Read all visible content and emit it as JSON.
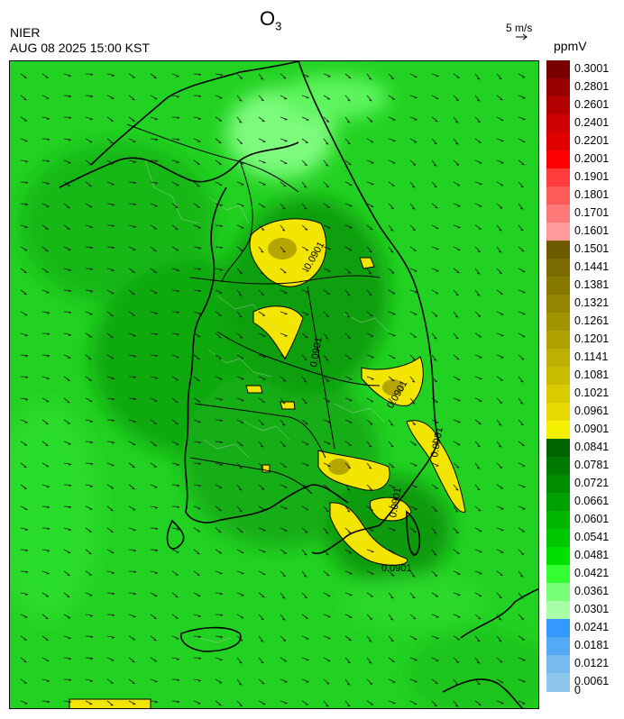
{
  "header": {
    "title": "O",
    "title_sub": "3",
    "agency": "NIER",
    "timestamp": "AUG 08 2025 15:00 KST",
    "vector_scale_label": "5 m/s",
    "units": "ppmV"
  },
  "map": {
    "contour_labels": [
      "0.0901",
      "0.0901",
      "0.0901",
      "0.0901",
      "0.0901",
      "0.0901"
    ]
  },
  "colorbar": {
    "levels": [
      {
        "label": "0.3001",
        "color": "#7a0000"
      },
      {
        "label": "0.2801",
        "color": "#990000"
      },
      {
        "label": "0.2601",
        "color": "#b30000"
      },
      {
        "label": "0.2401",
        "color": "#cc0000"
      },
      {
        "label": "0.2201",
        "color": "#e00000"
      },
      {
        "label": "0.2001",
        "color": "#ff0000"
      },
      {
        "label": "0.1901",
        "color": "#ff3b3b"
      },
      {
        "label": "0.1801",
        "color": "#ff5a5a"
      },
      {
        "label": "0.1701",
        "color": "#ff7878"
      },
      {
        "label": "0.1601",
        "color": "#ff9a9a"
      },
      {
        "label": "0.1501",
        "color": "#6e5a00"
      },
      {
        "label": "0.1441",
        "color": "#7a6a00"
      },
      {
        "label": "0.1381",
        "color": "#877800"
      },
      {
        "label": "0.1321",
        "color": "#948600"
      },
      {
        "label": "0.1261",
        "color": "#a29400"
      },
      {
        "label": "0.1201",
        "color": "#b0a200"
      },
      {
        "label": "0.1141",
        "color": "#bdb000"
      },
      {
        "label": "0.1081",
        "color": "#cabd00"
      },
      {
        "label": "0.1021",
        "color": "#d8cc00"
      },
      {
        "label": "0.0961",
        "color": "#e6da00"
      },
      {
        "label": "0.0901",
        "color": "#f5ef00"
      },
      {
        "label": "0.0841",
        "color": "#006400"
      },
      {
        "label": "0.0781",
        "color": "#007a00"
      },
      {
        "label": "0.0721",
        "color": "#008c00"
      },
      {
        "label": "0.0661",
        "color": "#00a000"
      },
      {
        "label": "0.0601",
        "color": "#00b400"
      },
      {
        "label": "0.0541",
        "color": "#00c800"
      },
      {
        "label": "0.0481",
        "color": "#00e000"
      },
      {
        "label": "0.0421",
        "color": "#33ff33"
      },
      {
        "label": "0.0361",
        "color": "#77ff77"
      },
      {
        "label": "0.0301",
        "color": "#a8ffa8"
      },
      {
        "label": "0.0241",
        "color": "#3399ff"
      },
      {
        "label": "0.0181",
        "color": "#55aaf5"
      },
      {
        "label": "0.0121",
        "color": "#77bbf0"
      },
      {
        "label": "0.0061",
        "color": "#8ec7ec"
      },
      {
        "label": "0",
        "color": "#a6d3ea"
      }
    ]
  }
}
